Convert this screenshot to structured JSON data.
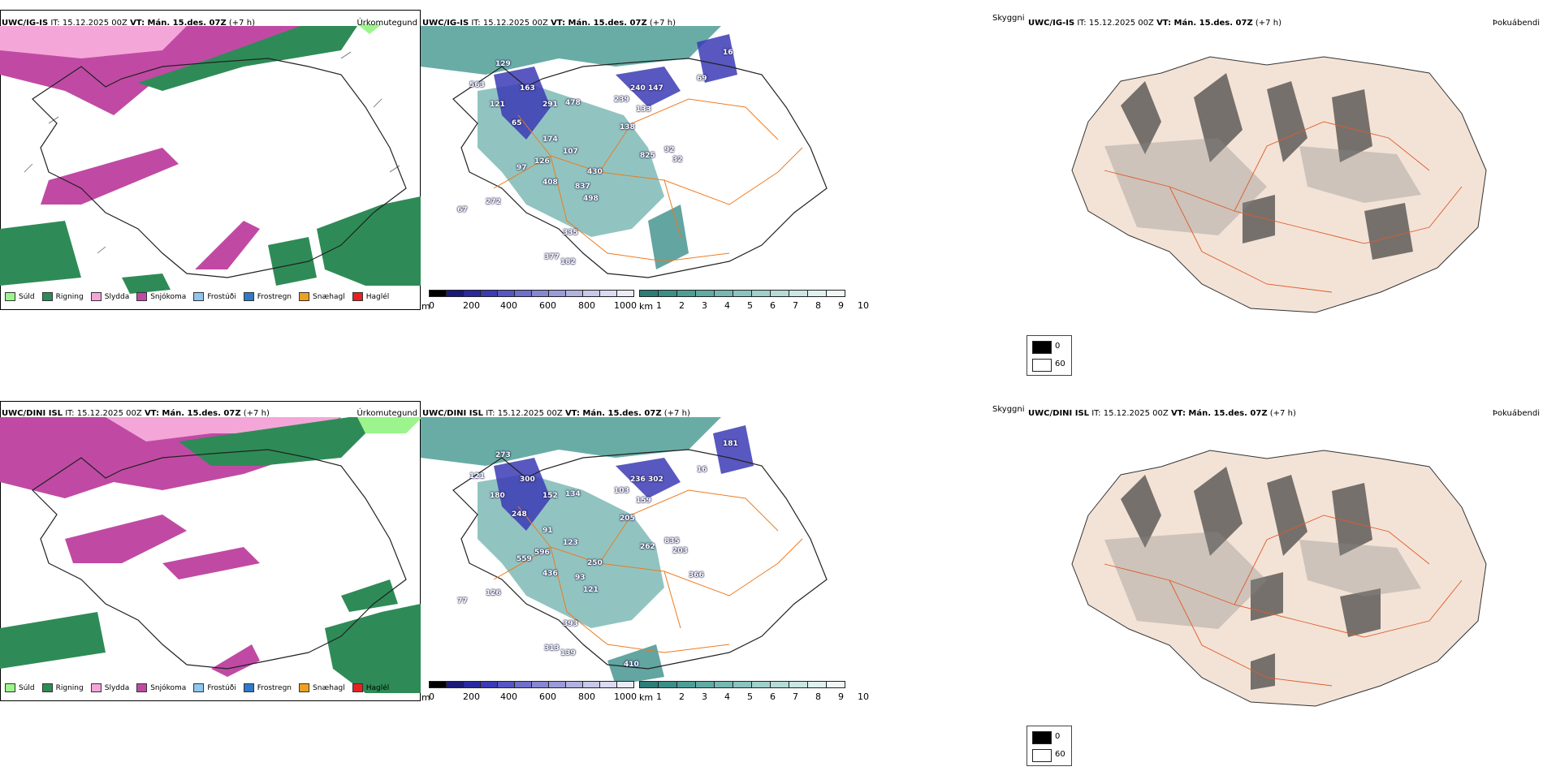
{
  "rows": [
    {
      "model": "UWC/IG-IS",
      "it": "IT: 15.12.2025 00Z",
      "vt": "VT: Mán. 15.des. 07Z",
      "lead": "(+7 h)",
      "precip_type_title": "Úrkomutegund",
      "cloud_title": "Skyggni",
      "fog_title": "Þokuábendi",
      "cloud_labels": [
        "129",
        "163",
        "291",
        "478",
        "563",
        "121",
        "65",
        "174",
        "107",
        "126",
        "97",
        "408",
        "837",
        "498",
        "67",
        "272",
        "240",
        "147",
        "239",
        "133",
        "138",
        "825",
        "92",
        "430",
        "335",
        "377",
        "182",
        "16",
        "69",
        "32"
      ]
    },
    {
      "model": "UWC/DINI ISL",
      "it": "IT: 15.12.2025 00Z",
      "vt": "VT: Mán. 15.des. 07Z",
      "lead": "(+7 h)",
      "precip_type_title": "Úrkomutegund",
      "cloud_title": "Skyggni",
      "fog_title": "Þokuábendi",
      "cloud_labels": [
        "273",
        "300",
        "152",
        "134",
        "121",
        "180",
        "248",
        "91",
        "123",
        "596",
        "559",
        "436",
        "93",
        "121",
        "77",
        "126",
        "236",
        "302",
        "103",
        "159",
        "205",
        "262",
        "835",
        "250",
        "393",
        "313",
        "139",
        "181",
        "16",
        "203",
        "366",
        "410"
      ]
    }
  ],
  "precip_legend": [
    {
      "label": "Súld",
      "color": "#9cf58c"
    },
    {
      "label": "Rigning",
      "color": "#2e8b57"
    },
    {
      "label": "Slydda",
      "color": "#f4a6d9"
    },
    {
      "label": "Snjókoma",
      "color": "#c04aa3"
    },
    {
      "label": "Frostúði",
      "color": "#8ec6f0"
    },
    {
      "label": "Frostregn",
      "color": "#2f79c8"
    },
    {
      "label": "Snæhagl",
      "color": "#f0a020"
    },
    {
      "label": "Haglél",
      "color": "#e82020"
    }
  ],
  "cloudbase_bar": {
    "unit": "m",
    "ticks": [
      "0",
      "200",
      "400",
      "600",
      "800",
      "1000"
    ],
    "colors": [
      "#000000",
      "#1a1a7a",
      "#2a2aa0",
      "#3b3bb5",
      "#5656c4",
      "#6f6fcc",
      "#8787d3",
      "#9b9bd9",
      "#b2b2e0",
      "#c8c8ea",
      "#dadaf2",
      "#ebebf8"
    ]
  },
  "cloudcover_bar": {
    "unit": "km",
    "ticks": [
      "1",
      "2",
      "3",
      "4",
      "5",
      "6",
      "7",
      "8",
      "9",
      "10"
    ],
    "colors": [
      "#2d7d78",
      "#3c8e89",
      "#4f9d97",
      "#62aba5",
      "#76b8b2",
      "#8bc4bf",
      "#a0d0cb",
      "#b5dbd7",
      "#cae6e3",
      "#dff1ef",
      "#f0f8f7"
    ]
  },
  "fog_legend": {
    "items": [
      {
        "label": "0",
        "color": "#000000"
      },
      {
        "label": "60",
        "color": "#ffffff"
      }
    ]
  }
}
